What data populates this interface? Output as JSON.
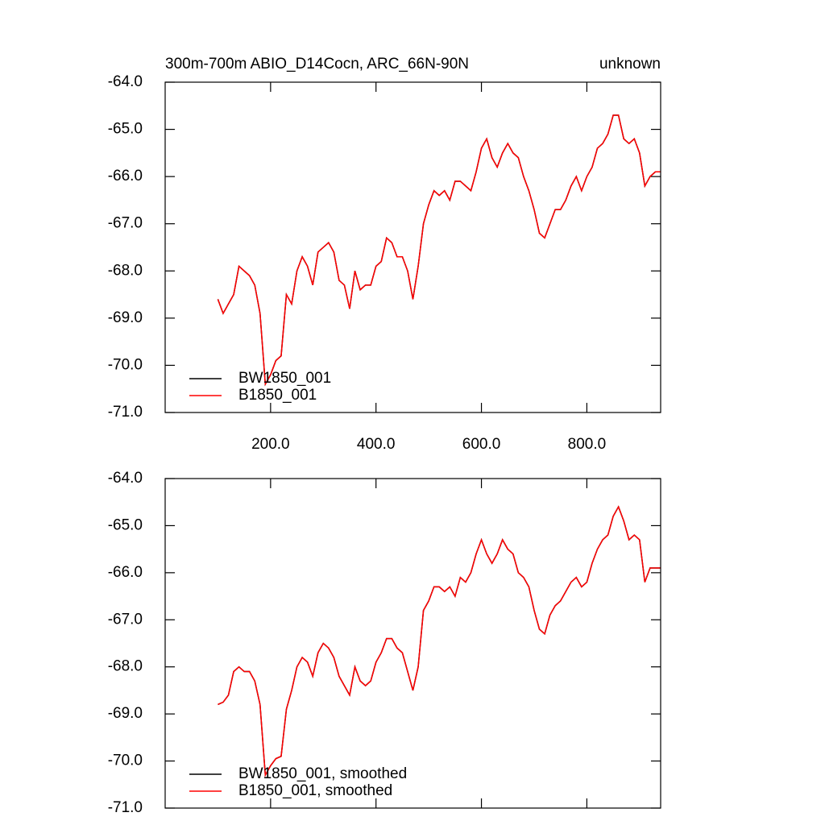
{
  "chart_data": [
    {
      "type": "line",
      "title": "300m-700m ABIO_D14Cocn, ARC_66N-90N",
      "subtitle": "unknown",
      "x": [
        100,
        110,
        120,
        130,
        140,
        150,
        160,
        170,
        180,
        190,
        200,
        210,
        220,
        230,
        240,
        250,
        260,
        270,
        280,
        290,
        300,
        310,
        320,
        330,
        340,
        350,
        360,
        370,
        380,
        390,
        400,
        410,
        420,
        430,
        440,
        450,
        460,
        470,
        480,
        490,
        500,
        510,
        520,
        530,
        540,
        550,
        560,
        570,
        580,
        590,
        600,
        610,
        620,
        630,
        640,
        650,
        660,
        670,
        680,
        690,
        700,
        710,
        720,
        730,
        740,
        750,
        760,
        770,
        780,
        790,
        800,
        810,
        820,
        830,
        840,
        850,
        860,
        870,
        880,
        890,
        900,
        910,
        920,
        930,
        940
      ],
      "series": [
        {
          "name": "BW1850_001",
          "color": "#000000",
          "values": [
            -68.6,
            -68.9,
            -68.7,
            -68.5,
            -67.9,
            -68.0,
            -68.1,
            -68.3,
            -68.9,
            -70.4,
            -70.2,
            -69.9,
            -69.8,
            -68.5,
            -68.7,
            -68.0,
            -67.7,
            -67.9,
            -68.3,
            -67.6,
            -67.5,
            -67.4,
            -67.6,
            -68.2,
            -68.3,
            -68.8,
            -68.0,
            -68.4,
            -68.3,
            -68.3,
            -67.9,
            -67.8,
            -67.3,
            -67.4,
            -67.7,
            -67.7,
            -68.0,
            -68.6,
            -67.9,
            -67.0,
            -66.6,
            -66.3,
            -66.4,
            -66.3,
            -66.5,
            -66.1,
            -66.1,
            -66.2,
            -66.3,
            -65.9,
            -65.4,
            -65.2,
            -65.6,
            -65.8,
            -65.5,
            -65.3,
            -65.5,
            -65.6,
            -66.0,
            -66.3,
            -66.7,
            -67.2,
            -67.3,
            -67.0,
            -66.7,
            -66.7,
            -66.5,
            -66.2,
            -66.0,
            -66.3,
            -66.0,
            -65.8,
            -65.4,
            -65.3,
            -65.1,
            -64.7,
            -64.7,
            -65.2,
            -65.3,
            -65.2,
            -65.5,
            -66.2,
            -66.0,
            -65.9,
            -65.9
          ]
        },
        {
          "name": "B1850_001",
          "color": "#ff0000",
          "values": [
            -68.6,
            -68.9,
            -68.7,
            -68.5,
            -67.9,
            -68.0,
            -68.1,
            -68.3,
            -68.9,
            -70.4,
            -70.2,
            -69.9,
            -69.8,
            -68.5,
            -68.7,
            -68.0,
            -67.7,
            -67.9,
            -68.3,
            -67.6,
            -67.5,
            -67.4,
            -67.6,
            -68.2,
            -68.3,
            -68.8,
            -68.0,
            -68.4,
            -68.3,
            -68.3,
            -67.9,
            -67.8,
            -67.3,
            -67.4,
            -67.7,
            -67.7,
            -68.0,
            -68.6,
            -67.9,
            -67.0,
            -66.6,
            -66.3,
            -66.4,
            -66.3,
            -66.5,
            -66.1,
            -66.1,
            -66.2,
            -66.3,
            -65.9,
            -65.4,
            -65.2,
            -65.6,
            -65.8,
            -65.5,
            -65.3,
            -65.5,
            -65.6,
            -66.0,
            -66.3,
            -66.7,
            -67.2,
            -67.3,
            -67.0,
            -66.7,
            -66.7,
            -66.5,
            -66.2,
            -66.0,
            -66.3,
            -66.0,
            -65.8,
            -65.4,
            -65.3,
            -65.1,
            -64.7,
            -64.7,
            -65.2,
            -65.3,
            -65.2,
            -65.5,
            -66.2,
            -66.0,
            -65.9,
            -65.9
          ]
        }
      ],
      "xlim": [
        0,
        940
      ],
      "ylim": [
        -71,
        -64
      ],
      "xticks": [
        {
          "value": 200,
          "label": "200.0"
        },
        {
          "value": 400,
          "label": "400.0"
        },
        {
          "value": 600,
          "label": "600.0"
        },
        {
          "value": 800,
          "label": "800.0"
        }
      ],
      "yticks": [
        {
          "value": -64,
          "label": "-64.0"
        },
        {
          "value": -65,
          "label": "-65.0"
        },
        {
          "value": -66,
          "label": "-66.0"
        },
        {
          "value": -67,
          "label": "-67.0"
        },
        {
          "value": -68,
          "label": "-68.0"
        },
        {
          "value": -69,
          "label": "-69.0"
        },
        {
          "value": -70,
          "label": "-70.0"
        },
        {
          "value": -71,
          "label": "-71.0"
        }
      ],
      "legend": "lower left"
    },
    {
      "type": "line",
      "x": [
        100,
        110,
        120,
        130,
        140,
        150,
        160,
        170,
        180,
        190,
        200,
        210,
        220,
        230,
        240,
        250,
        260,
        270,
        280,
        290,
        300,
        310,
        320,
        330,
        340,
        350,
        360,
        370,
        380,
        390,
        400,
        410,
        420,
        430,
        440,
        450,
        460,
        470,
        480,
        490,
        500,
        510,
        520,
        530,
        540,
        550,
        560,
        570,
        580,
        590,
        600,
        610,
        620,
        630,
        640,
        650,
        660,
        670,
        680,
        690,
        700,
        710,
        720,
        730,
        740,
        750,
        760,
        770,
        780,
        790,
        800,
        810,
        820,
        830,
        840,
        850,
        860,
        870,
        880,
        890,
        900,
        910,
        920,
        930,
        940
      ],
      "series": [
        {
          "name": "BW1850_001, smoothed",
          "color": "#000000",
          "values": [
            -68.8,
            -68.75,
            -68.6,
            -68.1,
            -68.0,
            -68.1,
            -68.1,
            -68.3,
            -68.8,
            -70.3,
            -70.1,
            -69.95,
            -69.9,
            -68.9,
            -68.5,
            -68.0,
            -67.8,
            -67.9,
            -68.2,
            -67.7,
            -67.5,
            -67.6,
            -67.8,
            -68.2,
            -68.4,
            -68.6,
            -68.0,
            -68.3,
            -68.4,
            -68.3,
            -67.9,
            -67.7,
            -67.4,
            -67.4,
            -67.6,
            -67.7,
            -68.1,
            -68.5,
            -68.0,
            -66.8,
            -66.6,
            -66.3,
            -66.3,
            -66.4,
            -66.3,
            -66.5,
            -66.1,
            -66.2,
            -66.0,
            -65.6,
            -65.3,
            -65.6,
            -65.8,
            -65.6,
            -65.3,
            -65.5,
            -65.6,
            -66.0,
            -66.1,
            -66.3,
            -66.8,
            -67.2,
            -67.3,
            -66.9,
            -66.7,
            -66.6,
            -66.4,
            -66.2,
            -66.1,
            -66.3,
            -66.2,
            -65.8,
            -65.5,
            -65.3,
            -65.2,
            -64.8,
            -64.6,
            -64.9,
            -65.3,
            -65.2,
            -65.3,
            -66.2,
            -65.9,
            -65.9,
            -65.9
          ]
        },
        {
          "name": "B1850_001, smoothed",
          "color": "#ff0000",
          "values": [
            -68.8,
            -68.75,
            -68.6,
            -68.1,
            -68.0,
            -68.1,
            -68.1,
            -68.3,
            -68.8,
            -70.3,
            -70.1,
            -69.95,
            -69.9,
            -68.9,
            -68.5,
            -68.0,
            -67.8,
            -67.9,
            -68.2,
            -67.7,
            -67.5,
            -67.6,
            -67.8,
            -68.2,
            -68.4,
            -68.6,
            -68.0,
            -68.3,
            -68.4,
            -68.3,
            -67.9,
            -67.7,
            -67.4,
            -67.4,
            -67.6,
            -67.7,
            -68.1,
            -68.5,
            -68.0,
            -66.8,
            -66.6,
            -66.3,
            -66.3,
            -66.4,
            -66.3,
            -66.5,
            -66.1,
            -66.2,
            -66.0,
            -65.6,
            -65.3,
            -65.6,
            -65.8,
            -65.6,
            -65.3,
            -65.5,
            -65.6,
            -66.0,
            -66.1,
            -66.3,
            -66.8,
            -67.2,
            -67.3,
            -66.9,
            -66.7,
            -66.6,
            -66.4,
            -66.2,
            -66.1,
            -66.3,
            -66.2,
            -65.8,
            -65.5,
            -65.3,
            -65.2,
            -64.8,
            -64.6,
            -64.9,
            -65.3,
            -65.2,
            -65.3,
            -66.2,
            -65.9,
            -65.9,
            -65.9
          ]
        }
      ],
      "xlim": [
        0,
        940
      ],
      "ylim": [
        -71,
        -64
      ],
      "xticks": [
        200,
        400,
        600,
        800
      ],
      "yticks": [
        {
          "value": -64,
          "label": "-64.0"
        },
        {
          "value": -65,
          "label": "-65.0"
        },
        {
          "value": -66,
          "label": "-66.0"
        },
        {
          "value": -67,
          "label": "-67.0"
        },
        {
          "value": -68,
          "label": "-68.0"
        },
        {
          "value": -69,
          "label": "-69.0"
        },
        {
          "value": -70,
          "label": "-70.0"
        },
        {
          "value": -71,
          "label": "-71.0"
        }
      ],
      "legend": "lower left"
    }
  ]
}
